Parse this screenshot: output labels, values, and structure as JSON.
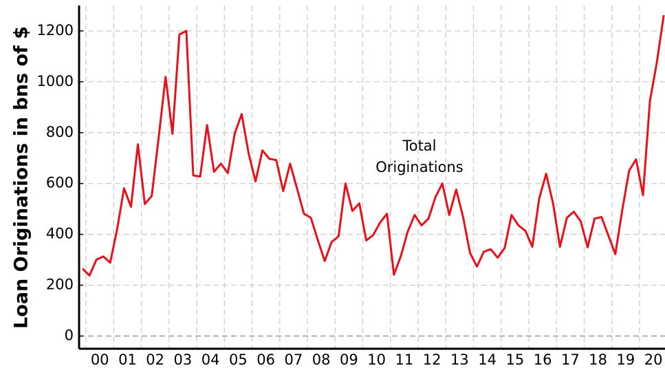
{
  "chart_data": {
    "type": "line",
    "ylabel": "Loan Originations in bns of $",
    "annotation": [
      "Total",
      "Originations"
    ],
    "x": [
      1999.875,
      2000.125,
      2000.375,
      2000.625,
      2000.875,
      2001.125,
      2001.375,
      2001.625,
      2001.875,
      2002.125,
      2002.375,
      2002.625,
      2002.875,
      2003.125,
      2003.375,
      2003.625,
      2003.875,
      2004.125,
      2004.375,
      2004.625,
      2004.875,
      2005.125,
      2005.375,
      2005.625,
      2005.875,
      2006.125,
      2006.375,
      2006.625,
      2006.875,
      2007.125,
      2007.375,
      2007.625,
      2007.875,
      2008.125,
      2008.375,
      2008.625,
      2008.875,
      2009.125,
      2009.375,
      2009.625,
      2009.875,
      2010.125,
      2010.375,
      2010.625,
      2010.875,
      2011.125,
      2011.375,
      2011.625,
      2011.875,
      2012.125,
      2012.375,
      2012.625,
      2012.875,
      2013.125,
      2013.375,
      2013.625,
      2013.875,
      2014.125,
      2014.375,
      2014.625,
      2014.875,
      2015.125,
      2015.375,
      2015.625,
      2015.875,
      2016.125,
      2016.375,
      2016.625,
      2016.875,
      2017.125,
      2017.375,
      2017.625,
      2017.875,
      2018.125,
      2018.375,
      2018.625,
      2018.875,
      2019.125,
      2019.375,
      2019.625,
      2019.875,
      2020.125,
      2020.375,
      2020.625,
      2020.875
    ],
    "series": [
      {
        "name": "Total Originations",
        "color": "#e8101a",
        "values": [
          265,
          238,
          300,
          313,
          289,
          420,
          581,
          508,
          754,
          519,
          551,
          780,
          1019,
          795,
          1186,
          1200,
          632,
          627,
          830,
          646,
          678,
          641,
          797,
          873,
          719,
          608,
          730,
          697,
          692,
          570,
          678,
          580,
          481,
          465,
          378,
          295,
          370,
          392,
          600,
          492,
          522,
          376,
          397,
          446,
          481,
          241,
          314,
          411,
          476,
          435,
          462,
          546,
          600,
          476,
          576,
          468,
          327,
          273,
          332,
          341,
          308,
          346,
          476,
          435,
          414,
          351,
          541,
          638,
          522,
          351,
          465,
          489,
          451,
          349,
          462,
          468,
          395,
          322,
          495,
          651,
          695,
          554,
          924,
          1076,
          1262
        ]
      }
    ],
    "xlim": [
      1999.75,
      2020.92
    ],
    "xticks": [
      {
        "value": 2000.5,
        "label": "00"
      },
      {
        "value": 2001.5,
        "label": "01"
      },
      {
        "value": 2002.5,
        "label": "02"
      },
      {
        "value": 2003.5,
        "label": "03"
      },
      {
        "value": 2004.5,
        "label": "04"
      },
      {
        "value": 2005.5,
        "label": "05"
      },
      {
        "value": 2006.5,
        "label": "06"
      },
      {
        "value": 2007.5,
        "label": "07"
      },
      {
        "value": 2008.5,
        "label": "08"
      },
      {
        "value": 2009.5,
        "label": "09"
      },
      {
        "value": 2010.5,
        "label": "10"
      },
      {
        "value": 2011.5,
        "label": "11"
      },
      {
        "value": 2012.5,
        "label": "12"
      },
      {
        "value": 2013.5,
        "label": "13"
      },
      {
        "value": 2014.5,
        "label": "14"
      },
      {
        "value": 2015.5,
        "label": "15"
      },
      {
        "value": 2016.5,
        "label": "16"
      },
      {
        "value": 2017.5,
        "label": "17"
      },
      {
        "value": 2018.5,
        "label": "18"
      },
      {
        "value": 2019.5,
        "label": "19"
      },
      {
        "value": 2020.5,
        "label": "20"
      }
    ],
    "ylim": [
      -50,
      1300
    ],
    "yticks": [
      0,
      200,
      400,
      600,
      800,
      1000,
      1200
    ],
    "grid": true
  }
}
